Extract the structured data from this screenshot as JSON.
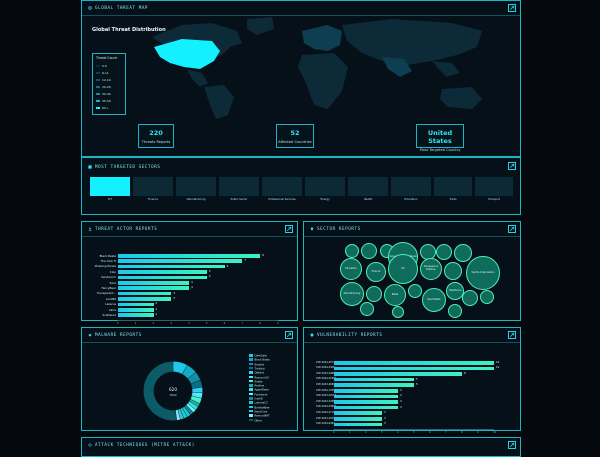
{
  "threat_map": {
    "title": "GLOBAL THREAT MAP",
    "map_title": "Global Threat Distribution",
    "legend_title": "Threat Count",
    "legend": [
      {
        "label": "0-5",
        "color": "#0b2a38"
      },
      {
        "label": "6-11",
        "color": "#0e3e52"
      },
      {
        "label": "12-19",
        "color": "#0f5468"
      },
      {
        "label": "20-29",
        "color": "#107080"
      },
      {
        "label": "30-44",
        "color": "#118fa2"
      },
      {
        "label": "45-59",
        "color": "#12b5c8"
      },
      {
        "label": "60+",
        "color": "#13f0ff"
      }
    ],
    "stats": [
      {
        "value": "220",
        "label": "Threats Reports"
      },
      {
        "value": "52",
        "label": "Affected Countries"
      },
      {
        "value": "United States",
        "label": "Most Targeted Country"
      }
    ]
  },
  "sectors": {
    "title": "MOST TARGETED SECTORS",
    "items": [
      "ICT",
      "Finance",
      "Manufacturing",
      "Public Sector",
      "Professional Services",
      "Energy",
      "Health",
      "Education",
      "Trade",
      "Transport"
    ]
  },
  "threat_actors": {
    "title": "THREAT ACTOR REPORTS",
    "chart_data": {
      "type": "bar",
      "orientation": "horizontal",
      "categories": [
        "Black Basta",
        "The Club Fi",
        "Mustang Panda",
        "Clop",
        "Sandworm",
        "Turla",
        "FancyBear",
        "Transparent...",
        "LockBit",
        "Lazarus",
        "Akira",
        "Scattered"
      ],
      "values": [
        8,
        7,
        6,
        5,
        5,
        4,
        4,
        3,
        3,
        2,
        2,
        2
      ],
      "xlim": [
        0,
        9
      ]
    }
  },
  "sectors_bubbles": {
    "title": "SECTOR REPORTS",
    "bubbles": [
      {
        "label": "Education",
        "size": 0.08
      },
      {
        "label": "ICT",
        "size": 0.1
      },
      {
        "label": "Government & Defense",
        "size": 0.09
      },
      {
        "label": "Finance",
        "size": 0.06
      },
      {
        "label": "Retail",
        "size": 0.05
      },
      {
        "label": "Aerospace & Defense",
        "size": 0.07
      },
      {
        "label": "Manufacturing",
        "size": 0.09
      },
      {
        "label": "Real Estate",
        "size": 0.05
      },
      {
        "label": "Energy",
        "size": 0.05
      },
      {
        "label": "Sports & Recreation",
        "size": 0.06
      },
      {
        "label": "Healthcare",
        "size": 0.06
      },
      {
        "label": "Pharma",
        "size": 0.05
      },
      {
        "label": "Transport",
        "size": 0.05
      },
      {
        "label": "Media",
        "size": 0.04
      },
      {
        "label": "Logistics",
        "size": 0.05
      },
      {
        "label": "Telecom",
        "size": 0.05
      }
    ]
  },
  "malware": {
    "title": "MALWARE REPORTS",
    "center_value": "620",
    "center_label": "Total",
    "chart_data": {
      "type": "pie",
      "donut": true,
      "labels": [
        "DarkGate",
        "Black Basta",
        "Emotet",
        "Trickbot",
        "Qakbot",
        "RaccoonV2",
        "Snake",
        "Redline",
        "AgentTesla",
        "Formbook",
        "IcedID",
        "LummaC2",
        "BumbleBee",
        "NanoCore",
        "RemcosRAT",
        "Other"
      ],
      "values": [
        8,
        6,
        5,
        4,
        3,
        3,
        3,
        2,
        2,
        2,
        2,
        2,
        2,
        2,
        2,
        52
      ],
      "colors": [
        "#1ec8e8",
        "#17a9c7",
        "#0f8ea8",
        "#0b6f87",
        "#2ed1f0",
        "#58e5ff",
        "#42f2d0",
        "#1fb29c",
        "#2ee3f2",
        "#67f5ea",
        "#18809a",
        "#23c4d8",
        "#0fd6c6",
        "#4bb8d8",
        "#7de8ff",
        "#0c5c68"
      ]
    }
  },
  "vulnerability": {
    "title": "VULNERABILITY REPORTS",
    "chart_data": {
      "type": "bar",
      "orientation": "horizontal",
      "categories": [
        "CVE-2024-4577",
        "CVE-2024-3400",
        "CVE-2023-4966",
        "CVE-2024-21887",
        "CVE-2023-46805",
        "CVE-2024-1709",
        "CVE-2023-22515",
        "CVE-2023-34362",
        "CVE-2024-23897",
        "CVE-2024-27198",
        "CVE-2023-20198",
        "CVE-2024-6387"
      ],
      "values": [
        10,
        10,
        8,
        5,
        5,
        4,
        4,
        4,
        4,
        3,
        3,
        3
      ],
      "xlim": [
        0,
        10
      ]
    }
  },
  "attack": {
    "title": "ATTACK TECHNIQUES (MITRE ATT&CK)"
  }
}
